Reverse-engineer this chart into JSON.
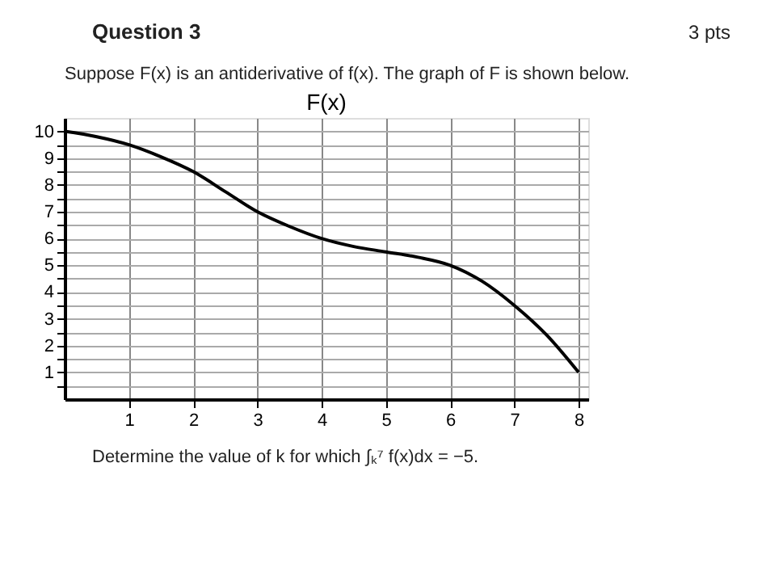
{
  "chart_data": {
    "type": "line",
    "title": "F(x)",
    "annotations": [
      "Question 3",
      "3 pts",
      "Suppose F(x) is an antiderivative of f(x). The graph of F is shown below.",
      "Determine the value of k for which ∫ₖ⁷ f(x)dx = −5."
    ],
    "x": [
      0,
      0.5,
      1,
      1.5,
      2,
      2.5,
      3,
      3.5,
      4,
      4.5,
      5,
      5.5,
      6,
      6.5,
      7,
      7.5,
      8
    ],
    "series": [
      {
        "color": "#000000",
        "values": [
          10,
          9.8,
          9.5,
          9.05,
          8.5,
          7.75,
          7,
          6.45,
          6,
          5.7,
          5.5,
          5.3,
          5,
          4.4,
          3.5,
          2.4,
          1
        ]
      }
    ],
    "xlim": [
      0,
      8.15
    ],
    "xticks": [
      1,
      2,
      3,
      4,
      5,
      6,
      7,
      8
    ],
    "ylim": [
      0,
      10.5
    ],
    "yticks": [
      {
        "value": 0.5,
        "label": null
      },
      1,
      {
        "value": 1.5,
        "label": null
      },
      2,
      {
        "value": 2.5,
        "label": null
      },
      3,
      {
        "value": 3.5,
        "label": null
      },
      4,
      {
        "value": 4.5,
        "label": null
      },
      5,
      {
        "value": 5.5,
        "label": null
      },
      6,
      {
        "value": 6.5,
        "label": null
      },
      7,
      {
        "value": 7.5,
        "label": null
      },
      8,
      {
        "value": 8.5,
        "label": null
      },
      9,
      {
        "value": 9.5,
        "label": null
      },
      10
    ],
    "grid": true,
    "marker": "none",
    "line_style": "solid"
  }
}
